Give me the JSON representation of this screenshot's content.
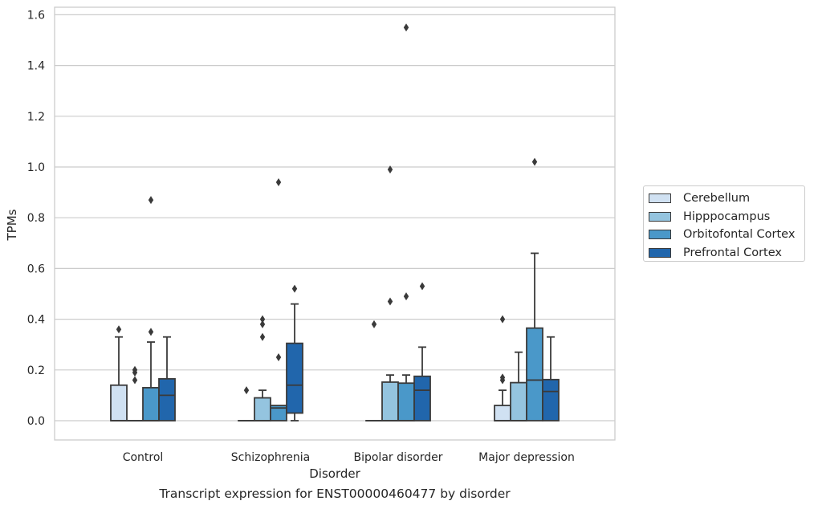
{
  "chart_data": {
    "type": "boxplot",
    "xlabel": "Disorder",
    "ylabel": "TPMs",
    "caption": "Transcript expression for ENST00000460477 by disorder",
    "categories": [
      "Control",
      "Schizophrenia",
      "Bipolar disorder",
      "Major depression"
    ],
    "ylim": [
      -0.075,
      1.63
    ],
    "yticks": [
      "0.0",
      "0.2",
      "0.4",
      "0.6",
      "0.8",
      "1.0",
      "1.2",
      "1.4",
      "1.6"
    ],
    "grid": "horizontal",
    "legend_position": "right",
    "series": [
      {
        "name": "Cerebellum",
        "color": "#d0e1f2",
        "boxes": [
          {
            "q1": 0.0,
            "median": 0.0,
            "q3": 0.14,
            "whisker_low": 0.0,
            "whisker_high": 0.33,
            "outliers": [
              0.36
            ]
          },
          {
            "q1": 0.0,
            "median": 0.0,
            "q3": 0.0,
            "whisker_low": 0.0,
            "whisker_high": 0.0,
            "outliers": [
              0.12
            ]
          },
          {
            "q1": 0.0,
            "median": 0.0,
            "q3": 0.0,
            "whisker_low": 0.0,
            "whisker_high": 0.0,
            "outliers": [
              0.38
            ]
          },
          {
            "q1": 0.0,
            "median": 0.0,
            "q3": 0.06,
            "whisker_low": 0.0,
            "whisker_high": 0.12,
            "outliers": [
              0.16,
              0.17,
              0.4
            ]
          }
        ]
      },
      {
        "name": "Hipppocampus",
        "color": "#94c4df",
        "boxes": [
          {
            "q1": 0.0,
            "median": 0.0,
            "q3": 0.0,
            "whisker_low": 0.0,
            "whisker_high": 0.0,
            "outliers": [
              0.16,
              0.19,
              0.2
            ]
          },
          {
            "q1": 0.0,
            "median": 0.0,
            "q3": 0.09,
            "whisker_low": 0.0,
            "whisker_high": 0.12,
            "outliers": [
              0.33,
              0.38,
              0.4
            ]
          },
          {
            "q1": 0.0,
            "median": 0.0,
            "q3": 0.152,
            "whisker_low": 0.0,
            "whisker_high": 0.18,
            "outliers": [
              0.47,
              0.99
            ]
          },
          {
            "q1": 0.0,
            "median": 0.0,
            "q3": 0.15,
            "whisker_low": 0.0,
            "whisker_high": 0.27,
            "outliers": []
          }
        ]
      },
      {
        "name": "Orbitofontal Cortex",
        "color": "#4a98c9",
        "boxes": [
          {
            "q1": 0.0,
            "median": 0.0,
            "q3": 0.13,
            "whisker_low": 0.0,
            "whisker_high": 0.31,
            "outliers": [
              0.35,
              0.87
            ]
          },
          {
            "q1": 0.0,
            "median": 0.05,
            "q3": 0.06,
            "whisker_low": 0.0,
            "whisker_high": 0.06,
            "outliers": [
              0.25,
              0.94
            ]
          },
          {
            "q1": 0.0,
            "median": 0.0,
            "q3": 0.148,
            "whisker_low": 0.0,
            "whisker_high": 0.18,
            "outliers": [
              0.49,
              1.55
            ]
          },
          {
            "q1": 0.0,
            "median": 0.16,
            "q3": 0.365,
            "whisker_low": 0.0,
            "whisker_high": 0.66,
            "outliers": [
              1.02
            ]
          }
        ]
      },
      {
        "name": "Prefrontal Cortex",
        "color": "#2166ac",
        "boxes": [
          {
            "q1": 0.0,
            "median": 0.1,
            "q3": 0.165,
            "whisker_low": 0.0,
            "whisker_high": 0.33,
            "outliers": []
          },
          {
            "q1": 0.03,
            "median": 0.14,
            "q3": 0.305,
            "whisker_low": 0.0,
            "whisker_high": 0.46,
            "outliers": [
              0.52
            ]
          },
          {
            "q1": 0.0,
            "median": 0.12,
            "q3": 0.175,
            "whisker_low": 0.0,
            "whisker_high": 0.29,
            "outliers": [
              0.53
            ]
          },
          {
            "q1": 0.0,
            "median": 0.115,
            "q3": 0.162,
            "whisker_low": 0.0,
            "whisker_high": 0.33,
            "outliers": []
          }
        ]
      }
    ]
  }
}
